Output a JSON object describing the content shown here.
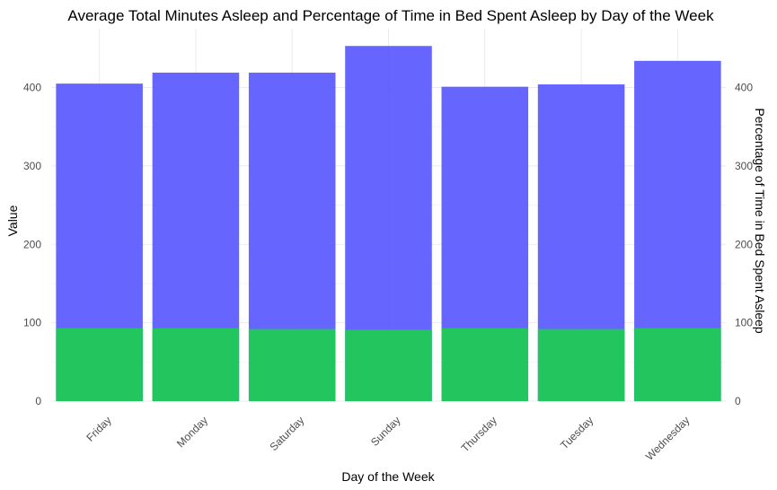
{
  "chart_data": {
    "type": "bar",
    "title": "Average Total Minutes Asleep and Percentage of Time in Bed Spent Asleep by Day of the Week",
    "xlabel": "Day of the Week",
    "ylabel": "Value",
    "y2label": "Percentage of Time in Bed Spent Asleep",
    "categories": [
      "Friday",
      "Monday",
      "Saturday",
      "Sunday",
      "Thursday",
      "Tuesday",
      "Wednesday"
    ],
    "series": [
      {
        "values": [
          405,
          419,
          419,
          453,
          401,
          404,
          434
        ],
        "color": "#5555ff"
      },
      {
        "values": [
          93,
          93,
          92,
          91,
          93,
          92,
          93
        ],
        "color": "#22c55e"
      }
    ],
    "ylim": [
      0,
      475
    ],
    "yticks": [
      0,
      100,
      200,
      300,
      400
    ],
    "y2ticks": [
      0,
      100,
      200,
      300,
      400
    ],
    "grid": true,
    "legend": "none",
    "overlay": true
  }
}
